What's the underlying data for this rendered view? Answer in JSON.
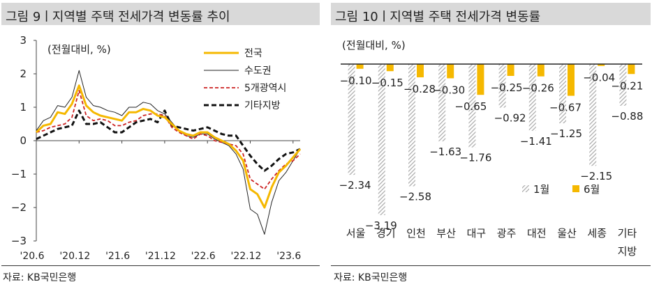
{
  "left_panel": {
    "title": "그림 9ㅣ지역별 주택 전세가격 변동률 추이",
    "source": "자료: KB국민은행"
  },
  "right_panel": {
    "title": "그림 10ㅣ지역별 주택 전세가격 변동률",
    "source": "자료: KB국민은행"
  },
  "colors": {
    "national": "#f5b800",
    "capital": "#222222",
    "metro": "#cc2222",
    "other": "#111111",
    "jan_bar": "#a8a8a8",
    "jun_bar": "#f5b800"
  },
  "chart_data": [
    {
      "type": "line",
      "unit_label": "(전월대비, %)",
      "x_tick_labels": [
        "'20.6",
        "'20.12",
        "'21.6",
        "'21.12",
        "'22.6",
        "'22.12",
        "'23.6"
      ],
      "ylim": [
        -3,
        3
      ],
      "y_ticks": [
        3,
        2,
        1,
        0,
        -1,
        -2,
        -3
      ],
      "legend_position": "top-right",
      "series": [
        {
          "name": "전국",
          "style": "solid-thick",
          "color_key": "national",
          "values": [
            0.25,
            0.45,
            0.5,
            0.85,
            0.8,
            1.1,
            1.65,
            1.05,
            0.85,
            0.75,
            0.7,
            0.65,
            0.6,
            0.85,
            0.85,
            0.95,
            0.9,
            0.75,
            0.7,
            0.5,
            0.3,
            0.2,
            0.15,
            0.25,
            0.25,
            0.1,
            0.0,
            -0.1,
            -0.3,
            -0.6,
            -1.45,
            -1.6,
            -2.0,
            -1.4,
            -0.95,
            -0.75,
            -0.5,
            -0.25
          ]
        },
        {
          "name": "수도권",
          "style": "solid-thin",
          "color_key": "capital",
          "values": [
            0.3,
            0.6,
            0.7,
            1.05,
            1.0,
            1.3,
            2.1,
            1.3,
            1.05,
            1.0,
            0.9,
            0.85,
            0.75,
            1.0,
            1.0,
            1.15,
            1.1,
            0.9,
            0.8,
            0.55,
            0.3,
            0.15,
            0.1,
            0.2,
            0.2,
            0.05,
            -0.05,
            -0.15,
            -0.4,
            -0.85,
            -2.05,
            -2.2,
            -2.8,
            -1.85,
            -1.2,
            -0.95,
            -0.6,
            -0.25
          ]
        },
        {
          "name": "5개광역시",
          "style": "dashed",
          "color_key": "metro",
          "values": [
            0.25,
            0.3,
            0.4,
            0.45,
            0.5,
            0.7,
            1.5,
            0.75,
            0.6,
            0.65,
            0.6,
            0.45,
            0.45,
            0.55,
            0.6,
            0.75,
            0.8,
            0.8,
            0.75,
            0.4,
            0.25,
            0.15,
            0.05,
            0.2,
            0.15,
            0.0,
            -0.05,
            -0.1,
            -0.15,
            -0.4,
            -1.15,
            -1.3,
            -1.45,
            -1.15,
            -0.9,
            -0.7,
            -0.6,
            -0.4
          ]
        },
        {
          "name": "기타지방",
          "style": "dashed-thick",
          "color_key": "other",
          "values": [
            0.05,
            0.15,
            0.25,
            0.35,
            0.4,
            0.45,
            0.9,
            0.5,
            0.5,
            0.55,
            0.4,
            0.25,
            0.25,
            0.4,
            0.55,
            0.6,
            0.65,
            0.55,
            0.9,
            0.45,
            0.4,
            0.35,
            0.3,
            0.35,
            0.4,
            0.3,
            0.2,
            0.15,
            0.15,
            -0.15,
            -0.45,
            -0.7,
            -0.9,
            -0.75,
            -0.55,
            -0.4,
            -0.35,
            -0.25
          ]
        }
      ]
    },
    {
      "type": "bar",
      "unit_label": "(전월대비, %)",
      "categories": [
        "서울",
        "경기",
        "인천",
        "부산",
        "대구",
        "광주",
        "대전",
        "울산",
        "세종",
        "기타"
      ],
      "category_second_line": [
        "",
        "",
        "",
        "",
        "",
        "",
        "",
        "",
        "",
        "지방"
      ],
      "ylim": [
        -3.5,
        0
      ],
      "legend_position": "lower-right",
      "series": [
        {
          "name": "1월",
          "color_key": "jan_bar",
          "values": [
            -2.34,
            -3.19,
            -2.58,
            -1.63,
            -1.76,
            -0.92,
            -1.41,
            -1.25,
            -2.15,
            -0.88
          ]
        },
        {
          "name": "6월",
          "color_key": "jun_bar",
          "values": [
            -0.1,
            -0.15,
            -0.28,
            -0.3,
            -0.65,
            -0.25,
            -0.26,
            -0.67,
            -0.04,
            -0.21
          ]
        }
      ],
      "labels": {
        "jan": [
          "-2.34",
          "-3.19",
          "-2.58",
          "-1.63",
          "-1.76",
          "-0.92",
          "-1.41",
          "-1.25",
          "-2.15",
          "-0.88"
        ],
        "jun": [
          "-0.10",
          "-0.15",
          "-0.28",
          "-0.30",
          "-0.65",
          "-0.25",
          "-0.26",
          "-0.67",
          "-0.04",
          "-0.21"
        ]
      }
    }
  ]
}
